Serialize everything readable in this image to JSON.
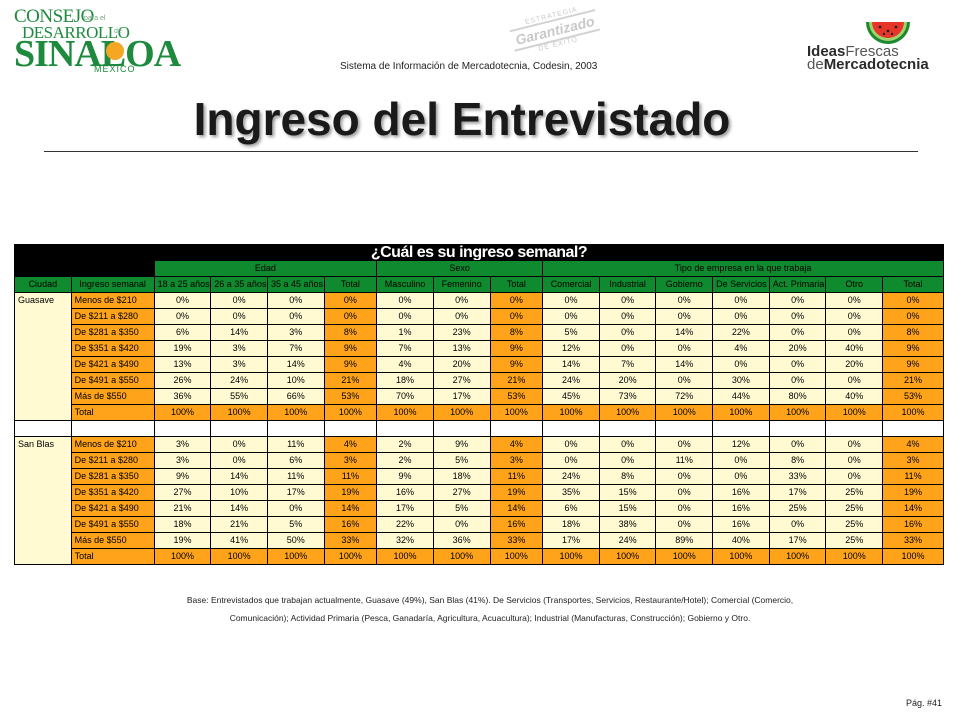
{
  "header": {
    "logo_left": {
      "line1": "CONSEJO",
      "line2": "DESARROLLO",
      "line3": "SINALOA",
      "line4": "MEXICO",
      "small1": "para el",
      "small2": "de"
    },
    "stamp": {
      "top": "ESTRATEGIA",
      "main": "Garantizado",
      "bottom": "DE ÉXITO"
    },
    "subtitle": "Sistema de Información de Mercadotecnia, Codesin, 2003",
    "logo_right": {
      "word1": "Ideas",
      "word2": "Frescas",
      "word3": "de",
      "word4": "Mercadotecnia"
    }
  },
  "title": "Ingreso del Entrevistado",
  "table": {
    "question": "¿Cuál es su ingreso semanal?",
    "groups": {
      "edad": "Edad",
      "sexo": "Sexo",
      "tipo": "Tipo de empresa en la que trabaja"
    },
    "columns": [
      "Ciudad",
      "Ingreso semanal",
      "18 a 25 años",
      "26 a 35 años",
      "35 a 45 años",
      "Total",
      "Masculino",
      "Femenino",
      "Total",
      "Comercial",
      "Industrial",
      "Gobierno",
      "De Servicios",
      "Act. Primaria",
      "Otro",
      "Total"
    ],
    "cities": [
      {
        "name": "Guasave",
        "rows": [
          [
            "Menos de $210",
            "0%",
            "0%",
            "0%",
            "0%",
            "0%",
            "0%",
            "0%",
            "0%",
            "0%",
            "0%",
            "0%",
            "0%",
            "0%",
            "0%"
          ],
          [
            "De $211 a $280",
            "0%",
            "0%",
            "0%",
            "0%",
            "0%",
            "0%",
            "0%",
            "0%",
            "0%",
            "0%",
            "0%",
            "0%",
            "0%",
            "0%"
          ],
          [
            "De $281 a $350",
            "6%",
            "14%",
            "3%",
            "8%",
            "1%",
            "23%",
            "8%",
            "5%",
            "0%",
            "14%",
            "22%",
            "0%",
            "0%",
            "8%"
          ],
          [
            "De $351 a $420",
            "19%",
            "3%",
            "7%",
            "9%",
            "7%",
            "13%",
            "9%",
            "12%",
            "0%",
            "0%",
            "4%",
            "20%",
            "40%",
            "9%"
          ],
          [
            "De $421 a $490",
            "13%",
            "3%",
            "14%",
            "9%",
            "4%",
            "20%",
            "9%",
            "14%",
            "7%",
            "14%",
            "0%",
            "0%",
            "20%",
            "9%"
          ],
          [
            "De $491 a $550",
            "26%",
            "24%",
            "10%",
            "21%",
            "18%",
            "27%",
            "21%",
            "24%",
            "20%",
            "0%",
            "30%",
            "0%",
            "0%",
            "21%"
          ],
          [
            "Más de $550",
            "36%",
            "55%",
            "66%",
            "53%",
            "70%",
            "17%",
            "53%",
            "45%",
            "73%",
            "72%",
            "44%",
            "80%",
            "40%",
            "53%"
          ],
          [
            "Total",
            "100%",
            "100%",
            "100%",
            "100%",
            "100%",
            "100%",
            "100%",
            "100%",
            "100%",
            "100%",
            "100%",
            "100%",
            "100%",
            "100%"
          ]
        ]
      },
      {
        "name": "San Blas",
        "rows": [
          [
            "Menos de $210",
            "3%",
            "0%",
            "11%",
            "4%",
            "2%",
            "9%",
            "4%",
            "0%",
            "0%",
            "0%",
            "12%",
            "0%",
            "0%",
            "4%"
          ],
          [
            "De $211 a $280",
            "3%",
            "0%",
            "6%",
            "3%",
            "2%",
            "5%",
            "3%",
            "0%",
            "0%",
            "11%",
            "0%",
            "8%",
            "0%",
            "3%"
          ],
          [
            "De $281 a $350",
            "9%",
            "14%",
            "11%",
            "11%",
            "9%",
            "18%",
            "11%",
            "24%",
            "8%",
            "0%",
            "0%",
            "33%",
            "0%",
            "11%"
          ],
          [
            "De $351 a $420",
            "27%",
            "10%",
            "17%",
            "19%",
            "16%",
            "27%",
            "19%",
            "35%",
            "15%",
            "0%",
            "16%",
            "17%",
            "25%",
            "19%"
          ],
          [
            "De $421 a $490",
            "21%",
            "14%",
            "0%",
            "14%",
            "17%",
            "5%",
            "14%",
            "6%",
            "15%",
            "0%",
            "16%",
            "25%",
            "25%",
            "14%"
          ],
          [
            "De $491 a $550",
            "18%",
            "21%",
            "5%",
            "16%",
            "22%",
            "0%",
            "16%",
            "18%",
            "38%",
            "0%",
            "16%",
            "0%",
            "25%",
            "16%"
          ],
          [
            "Más de $550",
            "19%",
            "41%",
            "50%",
            "33%",
            "32%",
            "36%",
            "33%",
            "17%",
            "24%",
            "89%",
            "40%",
            "17%",
            "25%",
            "33%"
          ],
          [
            "Total",
            "100%",
            "100%",
            "100%",
            "100%",
            "100%",
            "100%",
            "100%",
            "100%",
            "100%",
            "100%",
            "100%",
            "100%",
            "100%",
            "100%"
          ]
        ]
      }
    ]
  },
  "note_line1": "Base: Entrevistados que trabajan actualmente, Guasave (49%), San Blas (41%). De Servicios (Transportes, Servicios, Restaurante/Hotel); Comercial (Comercio,",
  "note_line2": "Comunicación); Actividad Primaria (Pesca, Ganadaría, Agricultura, Acuacultura); Industrial (Manufacturas, Construcción); Gobierno y Otro.",
  "page_number": "Pág. #41",
  "colors": {
    "green": "#0f8a2e",
    "orange": "#ffa31a",
    "cream": "#fffad2",
    "black": "#000000"
  }
}
